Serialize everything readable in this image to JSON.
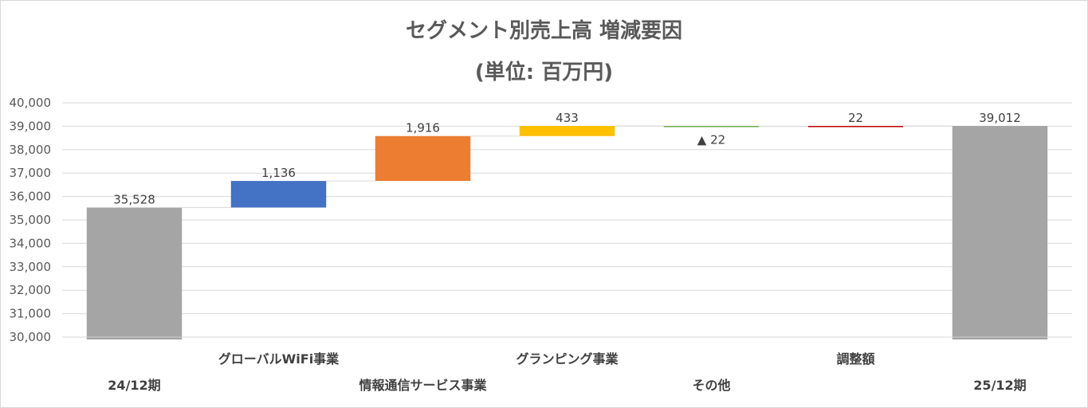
{
  "chart_data": {
    "type": "waterfall",
    "title": "セグメント別売上高 増減要因",
    "subtitle": "(単位: 百万円)",
    "ylim": [
      30000,
      40000
    ],
    "ytick_step": 1000,
    "yticks": [
      "30,000",
      "31,000",
      "32,000",
      "33,000",
      "34,000",
      "35,000",
      "36,000",
      "37,000",
      "38,000",
      "39,000",
      "40,000"
    ],
    "grid": true,
    "categories": [
      {
        "label": "24/12期",
        "row": 2,
        "kind": "total",
        "base": 30000,
        "value": 35528,
        "display": "35,528",
        "color": "#a5a5a5"
      },
      {
        "label": "グローバルWiFi事業",
        "row": 1,
        "kind": "delta",
        "value": 1136,
        "display": "1,136",
        "color": "#4472c4"
      },
      {
        "label": "情報通信サービス事業",
        "row": 2,
        "kind": "delta",
        "value": 1916,
        "display": "1,916",
        "color": "#ed7d31"
      },
      {
        "label": "グランピング事業",
        "row": 1,
        "kind": "delta",
        "value": 433,
        "display": "433",
        "color": "#ffc000"
      },
      {
        "label": "その他",
        "row": 2,
        "kind": "delta",
        "value": -22,
        "display": "▲ 22",
        "color": "#70ad47"
      },
      {
        "label": "調整額",
        "row": 1,
        "kind": "delta",
        "value": 22,
        "display": "22",
        "color": "#c00000"
      },
      {
        "label": "25/12期",
        "row": 2,
        "kind": "total",
        "base": 30000,
        "value": 39012,
        "display": "39,012",
        "color": "#a5a5a5"
      }
    ],
    "colors": {
      "grid": "#d9d9d9",
      "text": "#595959",
      "connector": "#d9d9d9"
    }
  }
}
